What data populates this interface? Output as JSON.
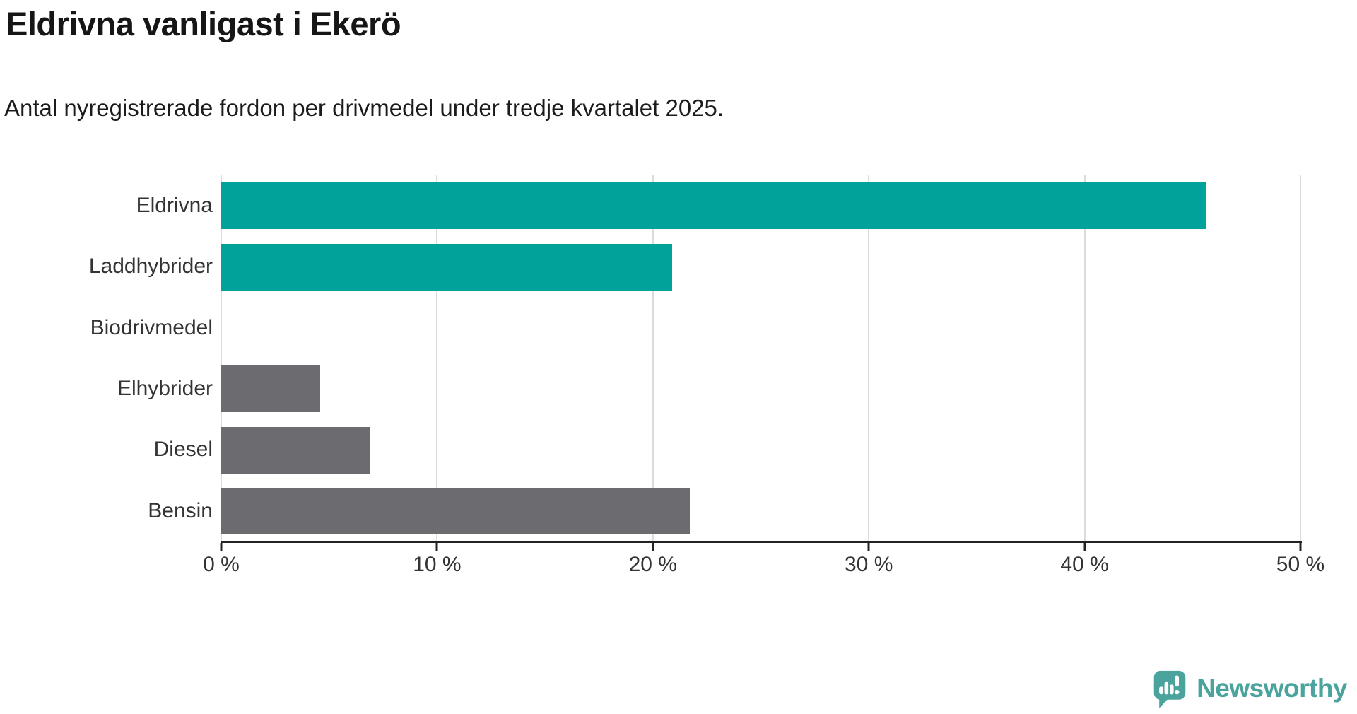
{
  "title": "Eldrivna vanligast i Ekerö",
  "subtitle": "Antal nyregistrerade fordon per drivmedel under tredje kvartalet 2025.",
  "colors": {
    "teal_bar": "#00a29a",
    "gray_bar": "#6b6b70",
    "gridline": "#dcdcdc",
    "axis": "#222222",
    "title_text": "#161616",
    "label_text": "#333333",
    "logo_teal": "#4aa49d"
  },
  "chart_data": {
    "type": "bar",
    "orientation": "horizontal",
    "title": "Eldrivna vanligast i Ekerö",
    "subtitle": "Antal nyregistrerade fordon per drivmedel under tredje kvartalet 2025.",
    "categories": [
      "Eldrivna",
      "Laddhybrider",
      "Biodrivmedel",
      "Elhybrider",
      "Diesel",
      "Bensin"
    ],
    "values": [
      45.6,
      20.9,
      0,
      4.6,
      6.9,
      21.7
    ],
    "unit": "%",
    "bar_colors": [
      "#00a29a",
      "#00a29a",
      "#6b6b70",
      "#6b6b70",
      "#6b6b70",
      "#6b6b70"
    ],
    "xlim": [
      0,
      50
    ],
    "x_tick_values": [
      0,
      10,
      20,
      30,
      40,
      50
    ],
    "x_tick_labels": [
      "0 %",
      "10 %",
      "20 %",
      "30 %",
      "40 %",
      "50 %"
    ],
    "grid": true,
    "legend": false
  },
  "branding": {
    "logo_text": "Newsworthy",
    "logo_icon": "newsworthy-speech-bubble-bar-chart-icon"
  }
}
